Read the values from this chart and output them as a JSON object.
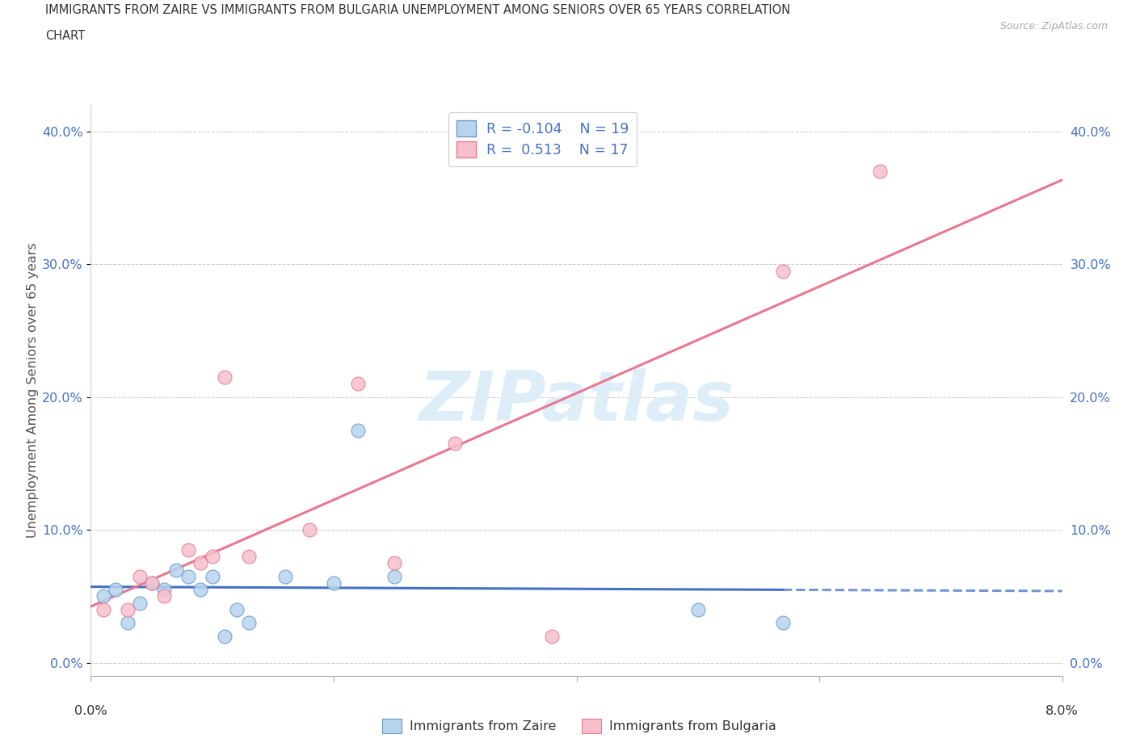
{
  "title_line1": "IMMIGRANTS FROM ZAIRE VS IMMIGRANTS FROM BULGARIA UNEMPLOYMENT AMONG SENIORS OVER 65 YEARS CORRELATION",
  "title_line2": "CHART",
  "source": "Source: ZipAtlas.com",
  "ylabel": "Unemployment Among Seniors over 65 years",
  "ytick_values": [
    0.0,
    0.1,
    0.2,
    0.3,
    0.4
  ],
  "ytick_labels": [
    "0.0%",
    "10.0%",
    "20.0%",
    "30.0%",
    "40.0%"
  ],
  "xlim": [
    0.0,
    0.08
  ],
  "ylim": [
    -0.01,
    0.42
  ],
  "zaire_fill": "#b8d4ed",
  "zaire_edge": "#6699cc",
  "bulgaria_fill": "#f5c0cc",
  "bulgaria_edge": "#e87890",
  "zaire_line_color": "#4472c4",
  "bulgaria_line_color": "#e87890",
  "watermark_text": "ZIPatlas",
  "watermark_color": "#ddeef8",
  "legend_zaire_label": "R = -0.104    N = 19",
  "legend_bulgaria_label": "R =  0.513    N = 17",
  "bottom_label_zaire": "Immigrants from Zaire",
  "bottom_label_bulgaria": "Immigrants from Bulgaria",
  "zaire_x": [
    0.001,
    0.002,
    0.003,
    0.004,
    0.005,
    0.006,
    0.007,
    0.008,
    0.009,
    0.01,
    0.011,
    0.012,
    0.013,
    0.016,
    0.02,
    0.022,
    0.025,
    0.05,
    0.057
  ],
  "zaire_y": [
    0.05,
    0.055,
    0.03,
    0.045,
    0.06,
    0.055,
    0.07,
    0.065,
    0.055,
    0.065,
    0.02,
    0.04,
    0.03,
    0.065,
    0.06,
    0.175,
    0.065,
    0.04,
    0.03
  ],
  "bulgaria_x": [
    0.001,
    0.003,
    0.004,
    0.005,
    0.006,
    0.008,
    0.009,
    0.01,
    0.011,
    0.013,
    0.018,
    0.022,
    0.025,
    0.03,
    0.038,
    0.057,
    0.065
  ],
  "bulgaria_y": [
    0.04,
    0.04,
    0.065,
    0.06,
    0.05,
    0.085,
    0.075,
    0.08,
    0.215,
    0.08,
    0.1,
    0.21,
    0.075,
    0.165,
    0.02,
    0.295,
    0.37
  ]
}
